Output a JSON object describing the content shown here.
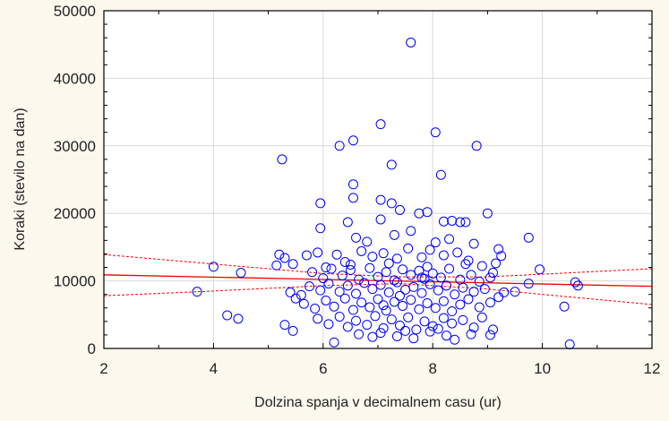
{
  "chart_data": {
    "type": "scatter",
    "title": "",
    "xlabel": "Dolzina spanja v decimalnem casu (ur)",
    "ylabel": "Koraki (stevilo na dan)",
    "xlim": [
      2,
      12
    ],
    "ylim": [
      0,
      50000
    ],
    "xticks": [
      "2",
      "4",
      "6",
      "8",
      "10",
      "12"
    ],
    "yticks": [
      "0",
      "10000",
      "20000",
      "30000",
      "40000",
      "50000"
    ],
    "grid": true,
    "colors": {
      "points": "#0000ff",
      "fit": "#ff0000",
      "background": "#fdf8ee"
    },
    "regression": {
      "x": [
        2,
        12
      ],
      "y": [
        10900,
        9200
      ]
    },
    "confidence_band": {
      "x": [
        2,
        4,
        6,
        7.4,
        9,
        10,
        12
      ],
      "upper": [
        13900,
        12500,
        11100,
        10600,
        10600,
        11000,
        11800
      ],
      "lower": [
        7800,
        8500,
        9300,
        9600,
        8800,
        8000,
        6500
      ]
    },
    "points": [
      [
        7.6,
        45300
      ],
      [
        7.05,
        33200
      ],
      [
        8.05,
        32000
      ],
      [
        6.3,
        30000
      ],
      [
        6.55,
        30800
      ],
      [
        8.8,
        30000
      ],
      [
        5.25,
        28000
      ],
      [
        7.25,
        27200
      ],
      [
        8.15,
        25700
      ],
      [
        6.55,
        24300
      ],
      [
        6.55,
        22300
      ],
      [
        7.05,
        22000
      ],
      [
        5.95,
        21500
      ],
      [
        7.25,
        21500
      ],
      [
        7.4,
        20500
      ],
      [
        7.75,
        20000
      ],
      [
        7.9,
        20200
      ],
      [
        9.0,
        20000
      ],
      [
        9.75,
        16400
      ],
      [
        7.05,
        19100
      ],
      [
        6.45,
        18700
      ],
      [
        8.2,
        18800
      ],
      [
        8.35,
        18900
      ],
      [
        8.5,
        18700
      ],
      [
        8.6,
        18700
      ],
      [
        3.7,
        8400
      ],
      [
        4.0,
        12100
      ],
      [
        4.5,
        11200
      ],
      [
        4.25,
        4900
      ],
      [
        4.45,
        4400
      ],
      [
        5.2,
        13900
      ],
      [
        5.3,
        13400
      ],
      [
        5.45,
        12500
      ],
      [
        5.4,
        8300
      ],
      [
        5.5,
        7400
      ],
      [
        5.6,
        7900
      ],
      [
        5.15,
        12300
      ],
      [
        5.3,
        3500
      ],
      [
        5.45,
        2600
      ],
      [
        6.2,
        900
      ],
      [
        10.4,
        6200
      ],
      [
        10.5,
        600
      ],
      [
        10.6,
        9800
      ],
      [
        10.65,
        9300
      ],
      [
        9.95,
        11700
      ],
      [
        9.75,
        9600
      ],
      [
        9.3,
        8300
      ],
      [
        9.5,
        8400
      ],
      [
        9.05,
        10500
      ],
      [
        9.1,
        11200
      ],
      [
        8.7,
        2100
      ],
      [
        9.05,
        2000
      ],
      [
        9.1,
        2800
      ],
      [
        8.4,
        1300
      ],
      [
        8.1,
        2900
      ],
      [
        5.95,
        17800
      ],
      [
        6.6,
        16400
      ],
      [
        6.8,
        15800
      ],
      [
        7.3,
        16800
      ],
      [
        7.6,
        17400
      ],
      [
        8.05,
        15700
      ],
      [
        8.3,
        16200
      ],
      [
        8.75,
        15500
      ],
      [
        9.2,
        14700
      ],
      [
        9.25,
        13700
      ],
      [
        5.7,
        13800
      ],
      [
        5.9,
        14200
      ],
      [
        6.05,
        12000
      ],
      [
        6.25,
        13900
      ],
      [
        6.4,
        12800
      ],
      [
        6.7,
        14400
      ],
      [
        6.9,
        13600
      ],
      [
        7.1,
        14100
      ],
      [
        7.35,
        13300
      ],
      [
        7.55,
        14800
      ],
      [
        7.8,
        13500
      ],
      [
        7.95,
        14600
      ],
      [
        8.2,
        13800
      ],
      [
        8.45,
        14200
      ],
      [
        8.65,
        13000
      ],
      [
        8.9,
        12200
      ],
      [
        9.15,
        12600
      ],
      [
        5.8,
        11300
      ],
      [
        6.0,
        10400
      ],
      [
        6.15,
        11800
      ],
      [
        6.35,
        10800
      ],
      [
        6.5,
        11600
      ],
      [
        6.65,
        10200
      ],
      [
        6.85,
        11900
      ],
      [
        7.0,
        10600
      ],
      [
        7.15,
        11300
      ],
      [
        7.3,
        10100
      ],
      [
        7.45,
        11700
      ],
      [
        7.6,
        10900
      ],
      [
        7.75,
        11500
      ],
      [
        7.85,
        10300
      ],
      [
        8.0,
        11100
      ],
      [
        8.15,
        10500
      ],
      [
        8.3,
        11800
      ],
      [
        8.5,
        10200
      ],
      [
        8.7,
        10900
      ],
      [
        8.85,
        9900
      ],
      [
        5.75,
        9200
      ],
      [
        5.95,
        8600
      ],
      [
        6.1,
        9600
      ],
      [
        6.3,
        8400
      ],
      [
        6.45,
        9300
      ],
      [
        6.6,
        8100
      ],
      [
        6.75,
        9700
      ],
      [
        6.9,
        8800
      ],
      [
        7.05,
        9400
      ],
      [
        7.2,
        8300
      ],
      [
        7.35,
        9800
      ],
      [
        7.5,
        8700
      ],
      [
        7.65,
        9100
      ],
      [
        7.8,
        8200
      ],
      [
        7.95,
        9500
      ],
      [
        8.1,
        8600
      ],
      [
        8.25,
        9300
      ],
      [
        8.4,
        8000
      ],
      [
        8.55,
        9000
      ],
      [
        8.75,
        8400
      ],
      [
        8.95,
        8800
      ],
      [
        9.2,
        7600
      ],
      [
        5.65,
        6600
      ],
      [
        5.85,
        5900
      ],
      [
        6.05,
        7100
      ],
      [
        6.2,
        6200
      ],
      [
        6.4,
        7400
      ],
      [
        6.55,
        5700
      ],
      [
        6.7,
        6800
      ],
      [
        6.85,
        6100
      ],
      [
        7.0,
        7300
      ],
      [
        7.15,
        5600
      ],
      [
        7.3,
        6900
      ],
      [
        7.45,
        6300
      ],
      [
        7.6,
        7200
      ],
      [
        7.75,
        5800
      ],
      [
        7.9,
        6700
      ],
      [
        8.05,
        6000
      ],
      [
        8.2,
        7000
      ],
      [
        8.35,
        5500
      ],
      [
        8.5,
        6500
      ],
      [
        8.65,
        7300
      ],
      [
        8.85,
        6100
      ],
      [
        9.05,
        6800
      ],
      [
        5.9,
        4400
      ],
      [
        6.1,
        3600
      ],
      [
        6.3,
        4700
      ],
      [
        6.45,
        3200
      ],
      [
        6.6,
        4100
      ],
      [
        6.8,
        3500
      ],
      [
        6.95,
        4800
      ],
      [
        7.1,
        3000
      ],
      [
        7.25,
        4300
      ],
      [
        7.4,
        3400
      ],
      [
        7.55,
        4600
      ],
      [
        7.7,
        2800
      ],
      [
        7.85,
        4000
      ],
      [
        8.0,
        3300
      ],
      [
        8.2,
        4500
      ],
      [
        8.35,
        3700
      ],
      [
        8.55,
        4200
      ],
      [
        8.75,
        3100
      ],
      [
        8.9,
        4600
      ],
      [
        6.65,
        2100
      ],
      [
        7.05,
        2300
      ],
      [
        7.35,
        1800
      ],
      [
        7.65,
        1500
      ],
      [
        7.95,
        2500
      ],
      [
        6.9,
        1700
      ],
      [
        7.5,
        2600
      ],
      [
        8.25,
        1900
      ],
      [
        6.5,
        12400
      ],
      [
        7.2,
        12600
      ],
      [
        7.9,
        12100
      ],
      [
        8.6,
        12500
      ],
      [
        7.4,
        7800
      ],
      [
        7.8,
        10500
      ],
      [
        7.1,
        6400
      ]
    ]
  }
}
